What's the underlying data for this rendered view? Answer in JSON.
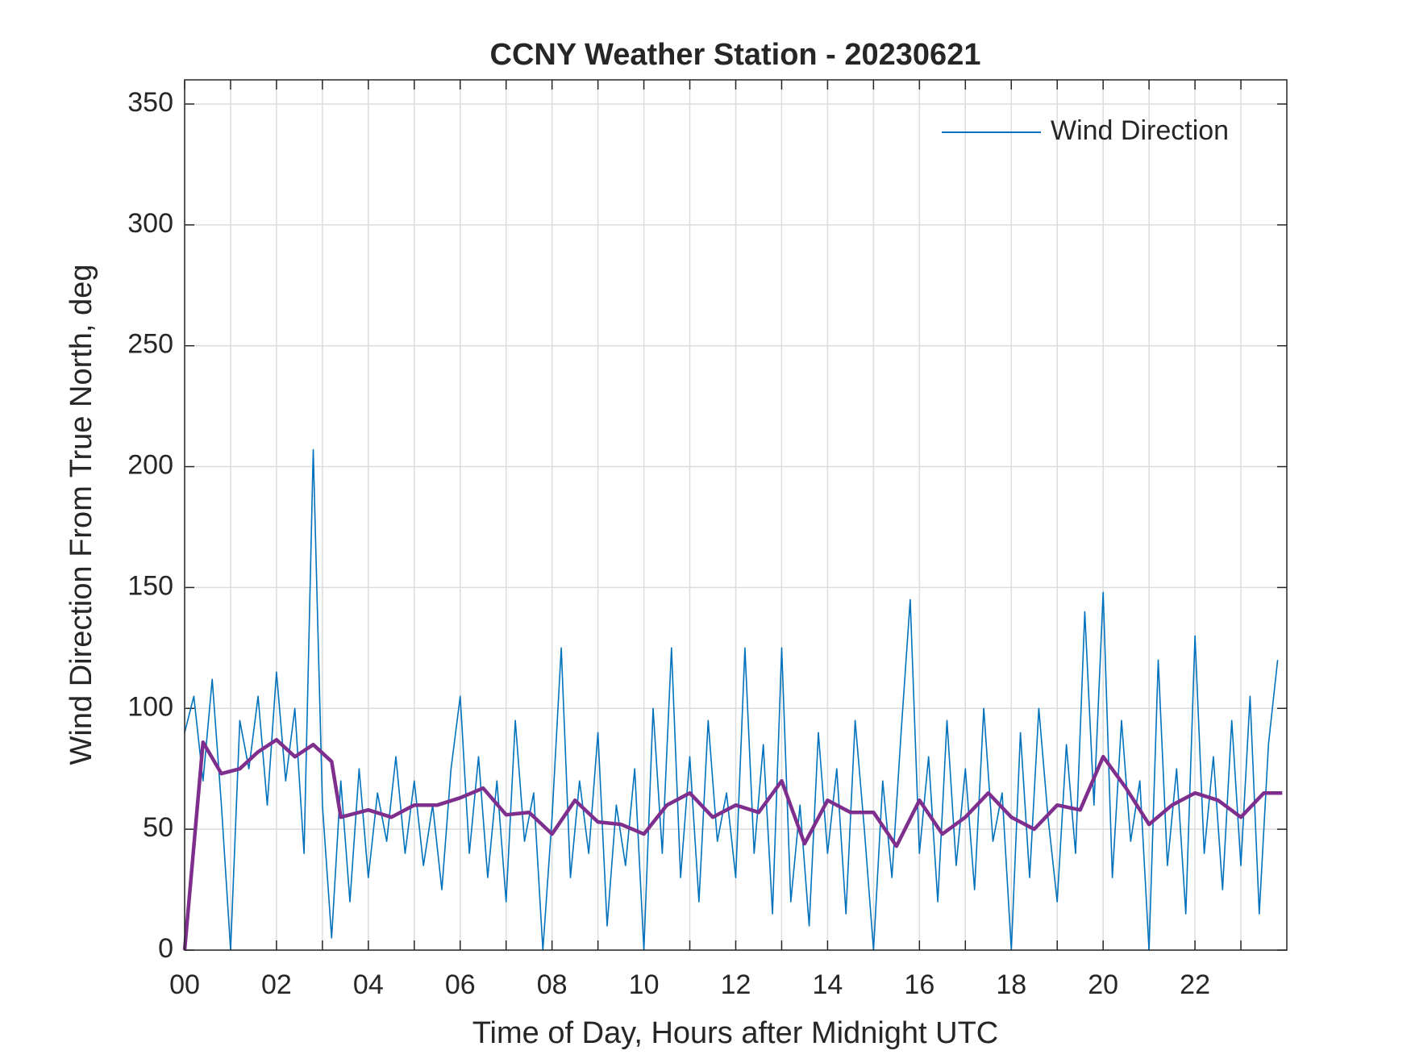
{
  "chart_data": {
    "type": "line",
    "title": "CCNY Weather Station - 20230621",
    "xlabel": "Time of Day, Hours after Midnight UTC",
    "ylabel": "Wind Direction From True North, deg",
    "xlim": [
      0,
      24
    ],
    "ylim": [
      0,
      360
    ],
    "xticks": [
      {
        "value": 0,
        "label": "00"
      },
      {
        "value": 2,
        "label": "02"
      },
      {
        "value": 4,
        "label": "04"
      },
      {
        "value": 6,
        "label": "06"
      },
      {
        "value": 8,
        "label": "08"
      },
      10,
      12,
      14,
      16,
      18,
      20,
      22
    ],
    "xminorticks": [
      1,
      3,
      5,
      7,
      9,
      11,
      13,
      15,
      17,
      19,
      21,
      23
    ],
    "yticks": [
      0,
      50,
      100,
      150,
      200,
      250,
      300,
      350
    ],
    "grid": true,
    "legend": "upper right",
    "series": [
      {
        "name": "Wind Direction",
        "color": "#0072bd",
        "x": [
          0,
          0.2,
          0.4,
          0.6,
          0.8,
          1,
          1.2,
          1.4,
          1.6,
          1.8,
          2,
          2.2,
          2.4,
          2.6,
          2.8,
          3,
          3.2,
          3.4,
          3.6,
          3.8,
          4,
          4.2,
          4.4,
          4.6,
          4.8,
          5,
          5.2,
          5.4,
          5.6,
          5.8,
          6,
          6.2,
          6.4,
          6.6,
          6.8,
          7,
          7.2,
          7.4,
          7.6,
          7.8,
          8,
          8.2,
          8.4,
          8.6,
          8.8,
          9,
          9.2,
          9.4,
          9.6,
          9.8,
          10,
          10.2,
          10.4,
          10.6,
          10.8,
          11,
          11.2,
          11.4,
          11.6,
          11.8,
          12,
          12.2,
          12.4,
          12.6,
          12.8,
          13,
          13.2,
          13.4,
          13.6,
          13.8,
          14,
          14.2,
          14.4,
          14.6,
          14.8,
          15,
          15.2,
          15.4,
          15.6,
          15.8,
          16,
          16.2,
          16.4,
          16.6,
          16.8,
          17,
          17.2,
          17.4,
          17.6,
          17.8,
          18,
          18.2,
          18.4,
          18.6,
          18.8,
          19,
          19.2,
          19.4,
          19.6,
          19.8,
          20,
          20.2,
          20.4,
          20.6,
          20.8,
          21,
          21.2,
          21.4,
          21.6,
          21.8,
          22,
          22.2,
          22.4,
          22.6,
          22.8,
          23,
          23.2,
          23.4,
          23.6,
          23.8
        ],
        "values": [
          90,
          105,
          70,
          112,
          60,
          0,
          95,
          75,
          105,
          60,
          115,
          70,
          100,
          40,
          207,
          60,
          5,
          70,
          20,
          75,
          30,
          65,
          45,
          80,
          40,
          70,
          35,
          60,
          25,
          75,
          105,
          40,
          80,
          30,
          70,
          20,
          95,
          45,
          65,
          0,
          55,
          125,
          30,
          70,
          40,
          90,
          10,
          60,
          35,
          75,
          0,
          100,
          40,
          125,
          30,
          80,
          20,
          95,
          45,
          65,
          30,
          125,
          40,
          85,
          15,
          125,
          20,
          60,
          10,
          90,
          40,
          75,
          15,
          95,
          50,
          0,
          70,
          30,
          90,
          145,
          40,
          80,
          20,
          95,
          35,
          75,
          25,
          100,
          45,
          65,
          0,
          90,
          30,
          100,
          55,
          20,
          85,
          40,
          140,
          60,
          148,
          30,
          95,
          45,
          70,
          0,
          120,
          35,
          75,
          15,
          130,
          40,
          80,
          25,
          95,
          35,
          105,
          15,
          85,
          120
        ]
      },
      {
        "color": "#7e2f8e",
        "x": [
          0,
          0.4,
          0.8,
          1.2,
          1.6,
          2,
          2.4,
          2.8,
          3.2,
          3.4,
          4,
          4.5,
          5,
          5.5,
          6,
          6.5,
          7,
          7.5,
          8,
          8.5,
          9,
          9.5,
          10,
          10.5,
          11,
          11.5,
          12,
          12.5,
          13,
          13.5,
          14,
          14.5,
          15,
          15.5,
          16,
          16.5,
          17,
          17.5,
          18,
          18.5,
          19,
          19.5,
          20,
          20.5,
          21,
          21.5,
          22,
          22.5,
          23,
          23.5,
          23.9
        ],
        "values": [
          0,
          86,
          73,
          75,
          82,
          87,
          80,
          85,
          78,
          55,
          58,
          55,
          60,
          60,
          63,
          67,
          56,
          57,
          48,
          62,
          53,
          52,
          48,
          60,
          65,
          55,
          60,
          57,
          70,
          44,
          62,
          57,
          57,
          43,
          62,
          48,
          55,
          65,
          55,
          50,
          60,
          58,
          80,
          67,
          52,
          60,
          65,
          62,
          55,
          65,
          65
        ]
      }
    ]
  }
}
